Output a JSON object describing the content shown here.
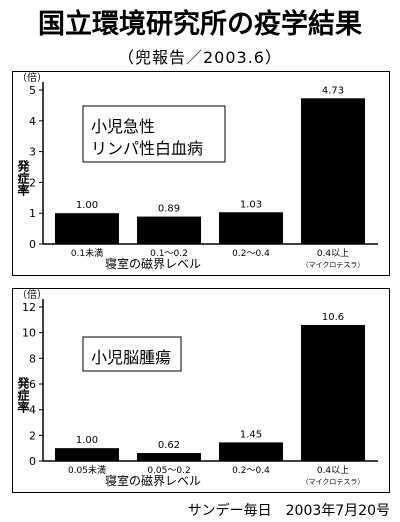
{
  "title": "国立環境研究所の疫学結果",
  "subtitle": "（兜報告／2003.6）",
  "source": "サンデー毎日　2003年7月20号",
  "chart_data": [
    {
      "type": "bar",
      "unit_label": "（倍）",
      "ylabel": "発症率",
      "xlabel": "寝室の磁界レベル",
      "annotation": "小児急性\nリンパ性白血病",
      "categories": [
        "0.1未満",
        "0.1〜0.2",
        "0.2〜0.4",
        "0.4以上"
      ],
      "category_notes": [
        "",
        "",
        "",
        "（マイクロテスラ）"
      ],
      "values": [
        1.0,
        0.89,
        1.03,
        4.73
      ],
      "value_labels": [
        "1.00",
        "0.89",
        "1.03",
        "4.73"
      ],
      "ylim": [
        0,
        5
      ],
      "yticks": [
        "0",
        "1",
        "2",
        "3",
        "4",
        "5"
      ],
      "bar_color": "#000000",
      "grid": false
    },
    {
      "type": "bar",
      "unit_label": "（倍）",
      "ylabel": "発症率",
      "xlabel": "寝室の磁界レベル",
      "annotation": "小児脳腫瘍",
      "categories": [
        "0.05未満",
        "0.05〜0.2",
        "0.2〜0.4",
        "0.4以上"
      ],
      "category_notes": [
        "",
        "",
        "",
        "（マイクロテスラ）"
      ],
      "values": [
        1.0,
        0.62,
        1.45,
        10.6
      ],
      "value_labels": [
        "1.00",
        "0.62",
        "1.45",
        "10.6"
      ],
      "ylim": [
        0,
        12
      ],
      "yticks": [
        "0",
        "2",
        "4",
        "6",
        "8",
        "10",
        "12"
      ],
      "bar_color": "#000000",
      "grid": false
    }
  ]
}
